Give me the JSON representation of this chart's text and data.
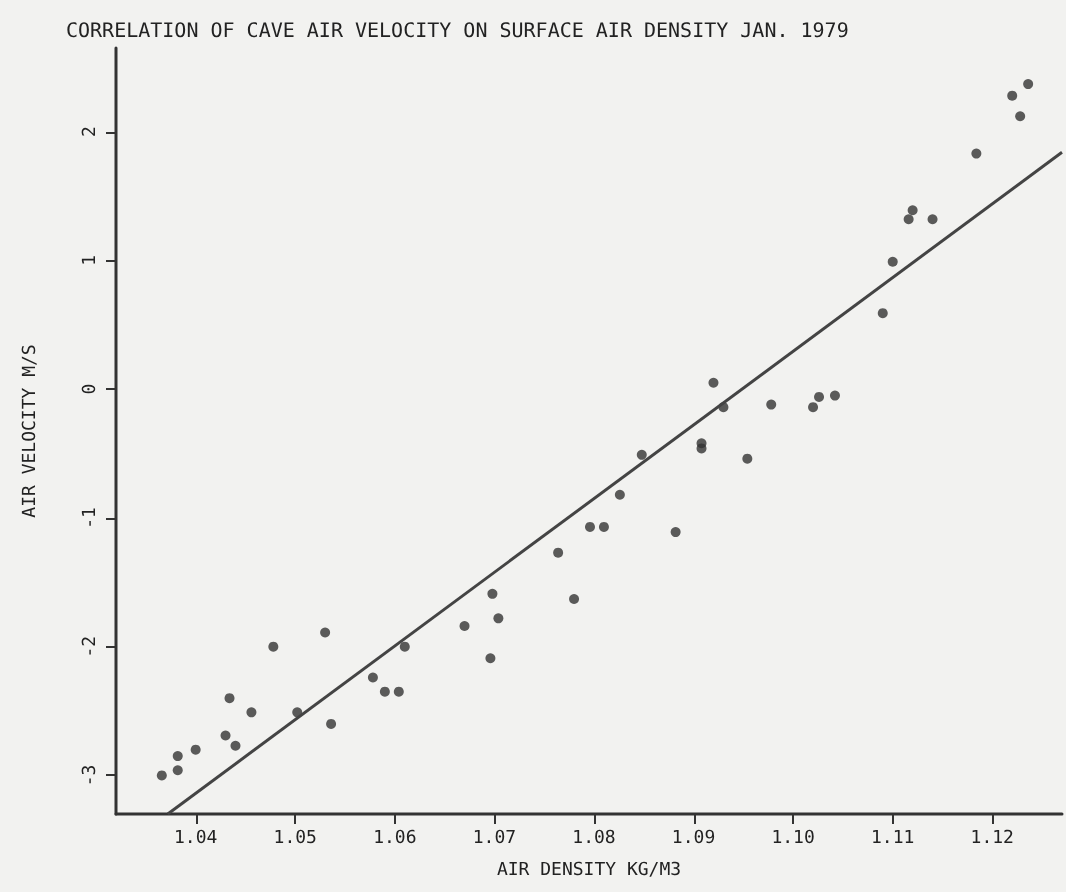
{
  "chart_data": {
    "type": "scatter",
    "title": "CORRELATION OF CAVE AIR VELOCITY ON SURFACE AIR DENSITY JAN. 1979",
    "xlabel": "AIR DENSITY KG/M3",
    "ylabel": "AIR VELOCITY M/S",
    "xlim": [
      1.032,
      1.127
    ],
    "ylim": [
      -3.3,
      2.65
    ],
    "xticks": [
      {
        "value": 1.04,
        "label": "1.04"
      },
      {
        "value": 1.05,
        "label": "1.05"
      },
      {
        "value": 1.06,
        "label": "1.06"
      },
      {
        "value": 1.07,
        "label": "1.07"
      },
      {
        "value": 1.08,
        "label": "1.08"
      },
      {
        "value": 1.09,
        "label": "1.09"
      },
      {
        "value": 1.1,
        "label": "1.10"
      },
      {
        "value": 1.11,
        "label": "1.11"
      },
      {
        "value": 1.12,
        "label": "1.12"
      }
    ],
    "yticks": [
      -3,
      -2,
      -1,
      0,
      1,
      2
    ],
    "grid": false,
    "marker": "circle",
    "series": [
      {
        "color": "#333333",
        "x": [
          1.0366,
          1.0382,
          1.0382,
          1.04,
          1.043,
          1.0434,
          1.044,
          1.0456,
          1.0478,
          1.0502,
          1.053,
          1.0536,
          1.0578,
          1.059,
          1.0604,
          1.061,
          1.067,
          1.0698,
          1.0704,
          1.0696,
          1.0764,
          1.078,
          1.0796,
          1.081,
          1.0826,
          1.0882,
          1.0848,
          1.0908,
          1.0908,
          1.092,
          1.093,
          1.0954,
          1.0978,
          1.102,
          1.1026,
          1.1042,
          1.109,
          1.11,
          1.1116,
          1.112,
          1.114,
          1.1184,
          1.122,
          1.1228,
          1.1236
        ],
        "values": [
          -3.0,
          -2.85,
          -2.96,
          -2.8,
          -2.69,
          -2.4,
          -2.77,
          -2.51,
          -2.0,
          -2.51,
          -1.89,
          -2.6,
          -2.24,
          -2.35,
          -2.35,
          -2.0,
          -1.84,
          -1.59,
          -1.78,
          -2.09,
          -1.27,
          -1.63,
          -1.07,
          -1.07,
          -0.82,
          -1.11,
          -0.51,
          -0.42,
          -0.46,
          0.05,
          -0.14,
          -0.54,
          -0.12,
          -0.14,
          -0.06,
          -0.05,
          0.59,
          0.99,
          1.32,
          1.39,
          1.32,
          1.83,
          2.28,
          2.12,
          2.37
        ]
      },
      {
        "type": "line",
        "color": "#444444",
        "marker": "none",
        "x": [
          1.0372,
          1.127
        ],
        "values": [
          -3.3,
          1.84
        ]
      }
    ]
  }
}
